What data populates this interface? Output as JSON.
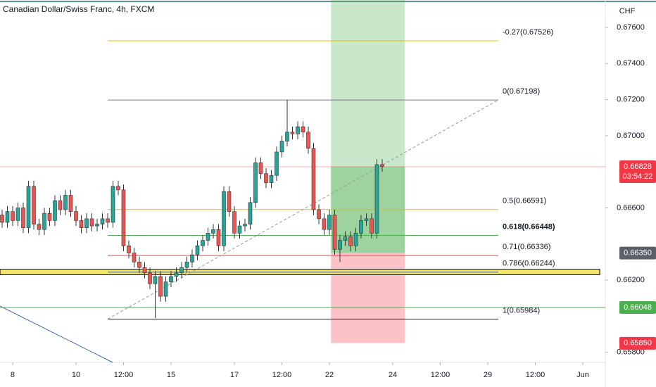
{
  "chart_data": {
    "type": "candlestick",
    "title": "Canadian Dollar/Swiss Franc, 4h, FXCM",
    "y_axis_label": "CHF",
    "xlim": [
      -2.4,
      112.27
    ],
    "ylim": [
      0.65744,
      0.67752
    ],
    "xticks": [
      {
        "value": 0,
        "label": "8"
      },
      {
        "value": 12,
        "label": "10"
      },
      {
        "value": 21,
        "label": "12:00"
      },
      {
        "value": 30,
        "label": "15"
      },
      {
        "value": 42,
        "label": "17"
      },
      {
        "value": 51,
        "label": "12:00"
      },
      {
        "value": 60,
        "label": "22"
      },
      {
        "value": 72,
        "label": "24"
      },
      {
        "value": 81,
        "label": "12:00"
      },
      {
        "value": 90,
        "label": "29"
      },
      {
        "value": 99,
        "label": "12:00"
      },
      {
        "value": 108,
        "label": "Jun"
      }
    ],
    "yticks": [
      {
        "value": 0.676,
        "label": "0.67600"
      },
      {
        "value": 0.674,
        "label": "0.67400"
      },
      {
        "value": 0.672,
        "label": "0.67200"
      },
      {
        "value": 0.67,
        "label": "0.67000"
      },
      {
        "value": 0.666,
        "label": "0.66600"
      },
      {
        "value": 0.662,
        "label": "0.66200"
      },
      {
        "value": 0.658,
        "label": "0.65800"
      }
    ],
    "up_color": "#26a69a",
    "down_color": "#ef5350",
    "x": [
      -2,
      -1,
      0,
      1,
      2,
      3,
      4,
      5,
      6,
      7,
      8,
      9,
      10,
      11,
      12,
      13,
      14,
      15,
      16,
      17,
      18,
      19,
      20,
      21,
      22,
      23,
      24,
      25,
      26,
      27,
      28,
      29,
      30,
      31,
      32,
      33,
      34,
      35,
      36,
      37,
      38,
      39,
      40,
      41,
      42,
      43,
      44,
      45,
      46,
      47,
      48,
      49,
      50,
      51,
      52,
      53,
      54,
      55,
      56,
      57,
      58,
      59,
      60,
      61,
      62,
      63,
      64,
      65,
      66,
      67,
      68,
      69,
      70
    ],
    "open": [
      0.6656,
      0.6652,
      0.6658,
      0.6653,
      0.666,
      0.6649,
      0.6672,
      0.6651,
      0.6648,
      0.6657,
      0.6653,
      0.6664,
      0.6659,
      0.6667,
      0.6658,
      0.6653,
      0.6649,
      0.6654,
      0.665,
      0.6651,
      0.6654,
      0.6652,
      0.6672,
      0.667,
      0.6639,
      0.6635,
      0.663,
      0.6627,
      0.6624,
      0.6618,
      0.6622,
      0.6611,
      0.6619,
      0.6622,
      0.6624,
      0.6627,
      0.663,
      0.6634,
      0.6639,
      0.6642,
      0.6646,
      0.6648,
      0.6639,
      0.6669,
      0.6658,
      0.6646,
      0.665,
      0.6651,
      0.6663,
      0.6685,
      0.6679,
      0.6674,
      0.6678,
      0.6691,
      0.6697,
      0.6702,
      0.6701,
      0.6705,
      0.6702,
      0.6693,
      0.6659,
      0.6654,
      0.6648,
      0.6656,
      0.6637,
      0.6642,
      0.6644,
      0.6639,
      0.6646,
      0.6653,
      0.6654,
      0.6646,
      0.6684
    ],
    "high": [
      0.6659,
      0.6661,
      0.6661,
      0.6663,
      0.6663,
      0.6675,
      0.6675,
      0.6654,
      0.666,
      0.666,
      0.6667,
      0.6667,
      0.667,
      0.667,
      0.6661,
      0.6656,
      0.6657,
      0.6657,
      0.6654,
      0.6657,
      0.6657,
      0.6675,
      0.6675,
      0.6673,
      0.6642,
      0.6638,
      0.6633,
      0.663,
      0.6627,
      0.6625,
      0.6625,
      0.6622,
      0.6625,
      0.6627,
      0.663,
      0.6633,
      0.6637,
      0.6642,
      0.6645,
      0.6649,
      0.6651,
      0.6651,
      0.6672,
      0.6672,
      0.6661,
      0.6653,
      0.6654,
      0.6666,
      0.6688,
      0.6688,
      0.6682,
      0.6681,
      0.6694,
      0.67,
      0.672,
      0.6705,
      0.6708,
      0.6708,
      0.6705,
      0.6696,
      0.6662,
      0.6657,
      0.6659,
      0.6659,
      0.6645,
      0.6647,
      0.6647,
      0.6649,
      0.6656,
      0.6657,
      0.6657,
      0.6687,
      0.6687
    ],
    "low": [
      0.6649,
      0.6649,
      0.665,
      0.665,
      0.6646,
      0.6646,
      0.6648,
      0.6645,
      0.6645,
      0.665,
      0.665,
      0.6656,
      0.6656,
      0.6655,
      0.665,
      0.6646,
      0.6646,
      0.6647,
      0.6647,
      0.6648,
      0.6649,
      0.6649,
      0.6667,
      0.6636,
      0.6632,
      0.6627,
      0.6624,
      0.6621,
      0.6615,
      0.6599,
      0.6608,
      0.6608,
      0.6616,
      0.6619,
      0.6621,
      0.6624,
      0.6627,
      0.6631,
      0.6636,
      0.6639,
      0.6643,
      0.6636,
      0.6636,
      0.6655,
      0.6643,
      0.6643,
      0.6647,
      0.6648,
      0.666,
      0.6676,
      0.6671,
      0.6671,
      0.6675,
      0.6688,
      0.6694,
      0.6698,
      0.6698,
      0.6699,
      0.669,
      0.6656,
      0.6651,
      0.6645,
      0.6645,
      0.6634,
      0.663,
      0.6639,
      0.6636,
      0.6636,
      0.6643,
      0.665,
      0.6643,
      0.6643,
      0.668
    ],
    "close": [
      0.6652,
      0.6658,
      0.6653,
      0.666,
      0.6649,
      0.6672,
      0.6651,
      0.6648,
      0.6657,
      0.6653,
      0.6664,
      0.6659,
      0.6667,
      0.6658,
      0.6653,
      0.6649,
      0.6654,
      0.665,
      0.6651,
      0.6654,
      0.6652,
      0.6672,
      0.667,
      0.6639,
      0.6635,
      0.663,
      0.6627,
      0.6624,
      0.6618,
      0.6622,
      0.6611,
      0.6619,
      0.6622,
      0.6624,
      0.6627,
      0.663,
      0.6634,
      0.6639,
      0.6642,
      0.6646,
      0.6648,
      0.6639,
      0.6669,
      0.6658,
      0.6646,
      0.665,
      0.6651,
      0.6663,
      0.6685,
      0.6679,
      0.6674,
      0.6678,
      0.6691,
      0.6697,
      0.6702,
      0.6701,
      0.6705,
      0.6702,
      0.6693,
      0.6659,
      0.6654,
      0.6648,
      0.6656,
      0.6637,
      0.6642,
      0.6644,
      0.6639,
      0.6646,
      0.6653,
      0.6654,
      0.6646,
      0.6684,
      0.6683
    ],
    "fib_start": 18,
    "fib_end": 92,
    "fib_levels": [
      {
        "label": "-0.27(0.67526)",
        "value": 0.67526,
        "color": "#e8c400"
      },
      {
        "label": "0(0.67198)",
        "value": 0.67198,
        "color": "#787b86"
      },
      {
        "label": "0.5(0.66591)",
        "value": 0.66591,
        "color": "#f0b400"
      },
      {
        "label": "0.618(0.66448)",
        "value": 0.66448,
        "color": "#4caf50"
      },
      {
        "label": "0.71(0.66336)",
        "value": 0.66336,
        "color": "#e0504f"
      },
      {
        "label": "0.786(0.66244)",
        "value": 0.66244,
        "color": "#4a5a8a"
      },
      {
        "label": "1(0.65984)",
        "value": 0.65984,
        "color": "#222222"
      }
    ],
    "zone": [
      0.6623,
      0.6626
    ],
    "position": {
      "start": 60.3,
      "end": 74.3,
      "entry": 0.6635,
      "stop": 0.6585,
      "target": 0.678
    },
    "support_line": 0.66048,
    "price_badges": [
      {
        "value": 0.66828,
        "label": "0.66828",
        "color": "#f23645",
        "countdown": "03:54:22"
      },
      {
        "value": 0.6635,
        "label": "0.66350",
        "color": "#5d606b"
      },
      {
        "value": 0.66048,
        "label": "0.66048",
        "color": "#4caf50"
      },
      {
        "value": 0.6585,
        "label": "0.65850",
        "color": "#f23645"
      }
    ]
  }
}
